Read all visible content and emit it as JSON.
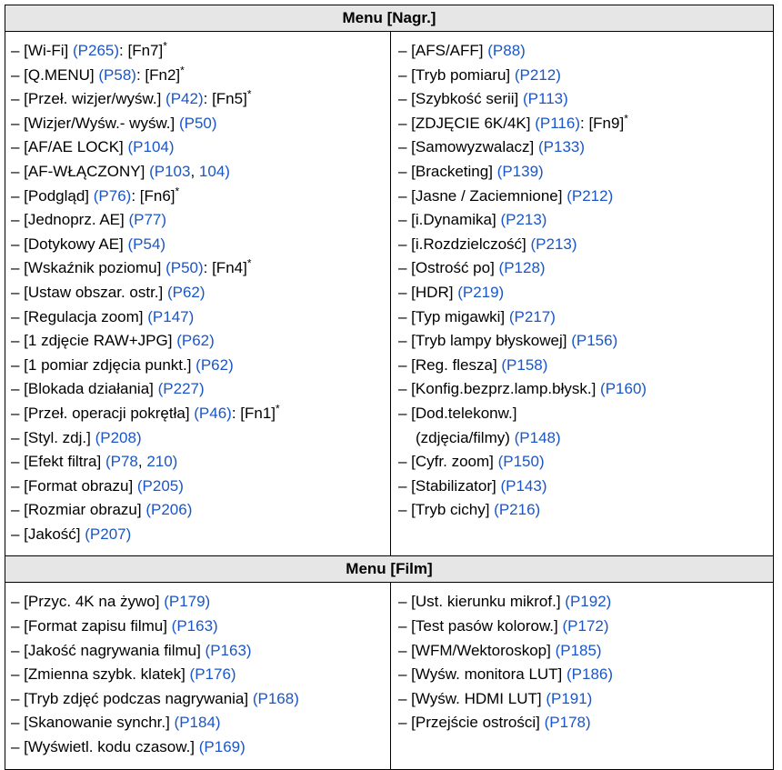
{
  "sections": [
    {
      "title": "Menu [Nagr.]",
      "left": [
        {
          "t": [
            [
              "– [Wi-Fi] ",
              0
            ],
            [
              "(P265)",
              1
            ],
            [
              ": [Fn7]",
              0
            ],
            [
              "*",
              2
            ]
          ]
        },
        {
          "t": [
            [
              "– [Q.MENU] ",
              0
            ],
            [
              "(P58)",
              1
            ],
            [
              ": [Fn2]",
              0
            ],
            [
              "*",
              2
            ]
          ]
        },
        {
          "t": [
            [
              "– [Przeł. wizjer/wyśw.] ",
              0
            ],
            [
              "(P42)",
              1
            ],
            [
              ": [Fn5]",
              0
            ],
            [
              "*",
              2
            ]
          ]
        },
        {
          "t": [
            [
              "– [Wizjer/Wyśw.- wyśw.] ",
              0
            ],
            [
              "(P50)",
              1
            ]
          ]
        },
        {
          "t": [
            [
              "– [AF/AE LOCK] ",
              0
            ],
            [
              "(P104)",
              1
            ]
          ]
        },
        {
          "t": [
            [
              "– [AF-WŁĄCZONY] ",
              0
            ],
            [
              "(P103",
              1
            ],
            [
              ", ",
              0
            ],
            [
              "104)",
              1
            ]
          ]
        },
        {
          "t": [
            [
              "– [Podgląd] ",
              0
            ],
            [
              "(P76)",
              1
            ],
            [
              ": [Fn6]",
              0
            ],
            [
              "*",
              2
            ]
          ]
        },
        {
          "t": [
            [
              "– [Jednoprz. AE] ",
              0
            ],
            [
              "(P77)",
              1
            ]
          ]
        },
        {
          "t": [
            [
              "– [Dotykowy AE] ",
              0
            ],
            [
              "(P54)",
              1
            ]
          ]
        },
        {
          "t": [
            [
              "– [Wskaźnik poziomu] ",
              0
            ],
            [
              "(P50)",
              1
            ],
            [
              ": [Fn4]",
              0
            ],
            [
              "*",
              2
            ]
          ]
        },
        {
          "t": [
            [
              "– [Ustaw obszar. ostr.] ",
              0
            ],
            [
              "(P62)",
              1
            ]
          ]
        },
        {
          "t": [
            [
              "– [Regulacja zoom] ",
              0
            ],
            [
              "(P147)",
              1
            ]
          ]
        },
        {
          "t": [
            [
              "– [1 zdjęcie RAW+JPG] ",
              0
            ],
            [
              "(P62)",
              1
            ]
          ]
        },
        {
          "t": [
            [
              "– [1 pomiar zdjęcia punkt.] ",
              0
            ],
            [
              "(P62)",
              1
            ]
          ]
        },
        {
          "t": [
            [
              "– [Blokada działania] ",
              0
            ],
            [
              "(P227)",
              1
            ]
          ]
        },
        {
          "t": [
            [
              "– [Przeł. operacji pokrętła] ",
              0
            ],
            [
              "(P46)",
              1
            ],
            [
              ": [Fn1]",
              0
            ],
            [
              "*",
              2
            ]
          ]
        },
        {
          "t": [
            [
              "– [Styl. zdj.] ",
              0
            ],
            [
              "(P208)",
              1
            ]
          ]
        },
        {
          "t": [
            [
              "– [Efekt filtra] ",
              0
            ],
            [
              "(P78",
              1
            ],
            [
              ", ",
              0
            ],
            [
              "210)",
              1
            ]
          ]
        },
        {
          "t": [
            [
              "– [Format obrazu] ",
              0
            ],
            [
              "(P205)",
              1
            ]
          ]
        },
        {
          "t": [
            [
              "– [Rozmiar obrazu] ",
              0
            ],
            [
              "(P206)",
              1
            ]
          ]
        },
        {
          "t": [
            [
              "– [Jakość] ",
              0
            ],
            [
              "(P207)",
              1
            ]
          ]
        }
      ],
      "right": [
        {
          "t": [
            [
              "– [AFS/AFF] ",
              0
            ],
            [
              "(P88)",
              1
            ]
          ]
        },
        {
          "t": [
            [
              "– [Tryb pomiaru] ",
              0
            ],
            [
              "(P212)",
              1
            ]
          ]
        },
        {
          "t": [
            [
              "– [Szybkość serii] ",
              0
            ],
            [
              "(P113)",
              1
            ]
          ]
        },
        {
          "t": [
            [
              "– [ZDJĘCIE 6K/4K] ",
              0
            ],
            [
              "(P116)",
              1
            ],
            [
              ": [Fn9]",
              0
            ],
            [
              "*",
              2
            ]
          ]
        },
        {
          "t": [
            [
              "– [Samowyzwalacz] ",
              0
            ],
            [
              "(P133)",
              1
            ]
          ]
        },
        {
          "t": [
            [
              "– [Bracketing] ",
              0
            ],
            [
              "(P139)",
              1
            ]
          ]
        },
        {
          "t": [
            [
              "– [Jasne / Zaciemnione] ",
              0
            ],
            [
              "(P212)",
              1
            ]
          ]
        },
        {
          "t": [
            [
              "– [i.Dynamika] ",
              0
            ],
            [
              "(P213)",
              1
            ]
          ]
        },
        {
          "t": [
            [
              "– [i.Rozdzielczość] ",
              0
            ],
            [
              "(P213)",
              1
            ]
          ]
        },
        {
          "t": [
            [
              "– [Ostrość po] ",
              0
            ],
            [
              "(P128)",
              1
            ]
          ]
        },
        {
          "t": [
            [
              "– [HDR] ",
              0
            ],
            [
              "(P219)",
              1
            ]
          ]
        },
        {
          "t": [
            [
              "– [Typ migawki] ",
              0
            ],
            [
              "(P217)",
              1
            ]
          ]
        },
        {
          "t": [
            [
              "– [Tryb lampy błyskowej] ",
              0
            ],
            [
              "(P156)",
              1
            ]
          ]
        },
        {
          "t": [
            [
              "– [Reg. flesza] ",
              0
            ],
            [
              "(P158)",
              1
            ]
          ]
        },
        {
          "t": [
            [
              "– [Konfig.bezprz.lamp.błysk.] ",
              0
            ],
            [
              "(P160)",
              1
            ]
          ]
        },
        {
          "t": [
            [
              "– [Dod.telekonw.]",
              0
            ]
          ]
        },
        {
          "t": [
            [
              "(zdjęcia/filmy) ",
              0
            ],
            [
              "(P148)",
              1
            ]
          ],
          "cont": true
        },
        {
          "t": [
            [
              "– [Cyfr. zoom] ",
              0
            ],
            [
              "(P150)",
              1
            ]
          ]
        },
        {
          "t": [
            [
              "– [Stabilizator] ",
              0
            ],
            [
              "(P143)",
              1
            ]
          ]
        },
        {
          "t": [
            [
              "– [Tryb cichy] ",
              0
            ],
            [
              "(P216)",
              1
            ]
          ]
        }
      ]
    },
    {
      "title": "Menu [Film]",
      "left": [
        {
          "t": [
            [
              "– [Przyc. 4K na żywo] ",
              0
            ],
            [
              "(P179)",
              1
            ]
          ]
        },
        {
          "t": [
            [
              "– [Format zapisu filmu] ",
              0
            ],
            [
              "(P163)",
              1
            ]
          ]
        },
        {
          "t": [
            [
              "– [Jakość nagrywania filmu] ",
              0
            ],
            [
              "(P163)",
              1
            ]
          ]
        },
        {
          "t": [
            [
              "– [Zmienna szybk. klatek] ",
              0
            ],
            [
              "(P176)",
              1
            ]
          ]
        },
        {
          "t": [
            [
              "– [Tryb zdjęć podczas nagrywania] ",
              0
            ],
            [
              "(P168)",
              1
            ]
          ]
        },
        {
          "t": [
            [
              "– [Skanowanie synchr.] ",
              0
            ],
            [
              "(P184)",
              1
            ]
          ]
        },
        {
          "t": [
            [
              "– [Wyświetl. kodu czasow.] ",
              0
            ],
            [
              "(P169)",
              1
            ]
          ]
        }
      ],
      "right": [
        {
          "t": [
            [
              "– [Ust. kierunku mikrof.] ",
              0
            ],
            [
              "(P192)",
              1
            ]
          ]
        },
        {
          "t": [
            [
              "– [Test pasów kolorow.] ",
              0
            ],
            [
              "(P172)",
              1
            ]
          ]
        },
        {
          "t": [
            [
              "– [WFM/Wektoroskop] ",
              0
            ],
            [
              "(P185)",
              1
            ]
          ]
        },
        {
          "t": [
            [
              "– [Wyśw. monitora LUT] ",
              0
            ],
            [
              "(P186)",
              1
            ]
          ]
        },
        {
          "t": [
            [
              "– [Wyśw. HDMI LUT] ",
              0
            ],
            [
              "(P191)",
              1
            ]
          ]
        },
        {
          "t": [
            [
              "– [Przejście ostrości] ",
              0
            ],
            [
              "(P178)",
              1
            ]
          ]
        }
      ]
    }
  ],
  "colors": {
    "link": "#1a56c8",
    "header_bg": "#e6e6e6"
  }
}
